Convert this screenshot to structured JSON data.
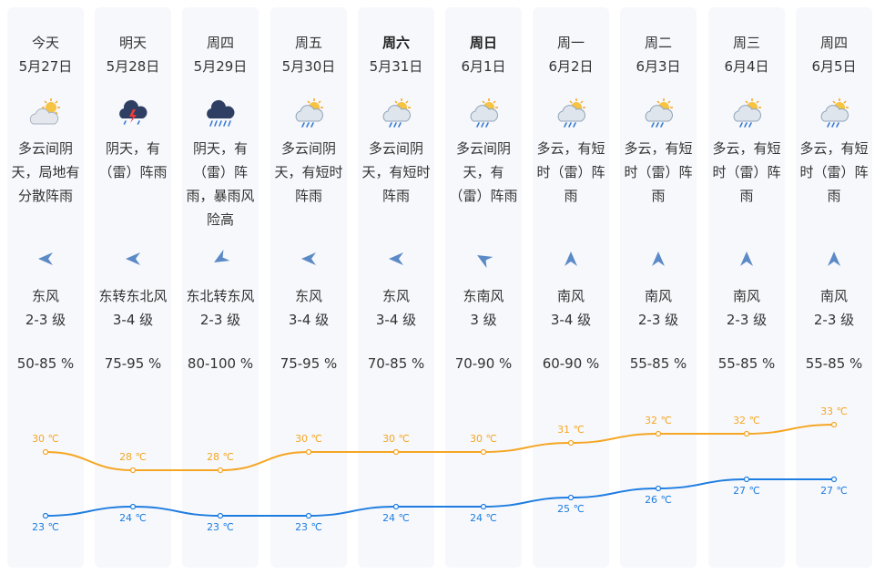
{
  "days": [
    {
      "day": "今天",
      "date": "5月27日",
      "bold": false,
      "icon": "partly-cloudy-icon",
      "desc": [
        "多云间阴",
        "天，局地有",
        "分散阵雨"
      ],
      "wind_dir": "东风",
      "wind_level": "2-3 级",
      "wind_arrow": "west",
      "humidity": "50-85 %",
      "high": "30 ℃",
      "low": "23 ℃",
      "high_val": 30,
      "low_val": 23
    },
    {
      "day": "明天",
      "date": "5月28日",
      "bold": false,
      "icon": "thunderstorm-icon",
      "desc": [
        "阴天，有",
        "（雷）阵雨"
      ],
      "wind_dir": "东转东北风",
      "wind_level": "3-4 级",
      "wind_arrow": "west",
      "humidity": "75-95 %",
      "high": "28 ℃",
      "low": "24 ℃",
      "high_val": 28,
      "low_val": 24
    },
    {
      "day": "周四",
      "date": "5月29日",
      "bold": false,
      "icon": "heavy-rain-icon",
      "desc": [
        "阴天，有",
        "（雷）阵",
        "雨，暴雨风",
        "险高"
      ],
      "wind_dir": "东北转东风",
      "wind_level": "2-3 级",
      "wind_arrow": "southwest",
      "humidity": "80-100 %",
      "high": "28 ℃",
      "low": "23 ℃",
      "high_val": 28,
      "low_val": 23
    },
    {
      "day": "周五",
      "date": "5月30日",
      "bold": false,
      "icon": "sun-cloud-rain-icon",
      "desc": [
        "多云间阴",
        "天，有短时",
        "阵雨"
      ],
      "wind_dir": "东风",
      "wind_level": "3-4 级",
      "wind_arrow": "west",
      "humidity": "75-95 %",
      "high": "30 ℃",
      "low": "23 ℃",
      "high_val": 30,
      "low_val": 23
    },
    {
      "day": "周六",
      "date": "5月31日",
      "bold": true,
      "icon": "sun-cloud-rain-icon",
      "desc": [
        "多云间阴",
        "天，有短时",
        "阵雨"
      ],
      "wind_dir": "东风",
      "wind_level": "3-4 级",
      "wind_arrow": "west",
      "humidity": "70-85 %",
      "high": "30 ℃",
      "low": "24 ℃",
      "high_val": 30,
      "low_val": 24
    },
    {
      "day": "周日",
      "date": "6月1日",
      "bold": true,
      "icon": "sun-cloud-rain-icon",
      "desc": [
        "多云间阴",
        "天，有",
        "（雷）阵雨"
      ],
      "wind_dir": "东南风",
      "wind_level": "3 级",
      "wind_arrow": "northwest",
      "humidity": "70-90 %",
      "high": "30 ℃",
      "low": "24 ℃",
      "high_val": 30,
      "low_val": 24
    },
    {
      "day": "周一",
      "date": "6月2日",
      "bold": false,
      "icon": "sun-cloud-rain-icon",
      "desc": [
        "多云，有短",
        "时（雷）阵",
        "雨"
      ],
      "wind_dir": "南风",
      "wind_level": "3-4 级",
      "wind_arrow": "north",
      "humidity": "60-90 %",
      "high": "31 ℃",
      "low": "25 ℃",
      "high_val": 31,
      "low_val": 25
    },
    {
      "day": "周二",
      "date": "6月3日",
      "bold": false,
      "icon": "sun-cloud-rain-icon",
      "desc": [
        "多云，有短",
        "时（雷）阵",
        "雨"
      ],
      "wind_dir": "南风",
      "wind_level": "2-3 级",
      "wind_arrow": "north",
      "humidity": "55-85 %",
      "high": "32 ℃",
      "low": "26 ℃",
      "high_val": 32,
      "low_val": 26
    },
    {
      "day": "周三",
      "date": "6月4日",
      "bold": false,
      "icon": "sun-cloud-rain-icon",
      "desc": [
        "多云，有短",
        "时（雷）阵",
        "雨"
      ],
      "wind_dir": "南风",
      "wind_level": "2-3 级",
      "wind_arrow": "north",
      "humidity": "55-85 %",
      "high": "32 ℃",
      "low": "27 ℃",
      "high_val": 32,
      "low_val": 27
    },
    {
      "day": "周四",
      "date": "6月5日",
      "bold": false,
      "icon": "sun-cloud-rain-icon",
      "desc": [
        "多云，有短",
        "时（雷）阵",
        "雨"
      ],
      "wind_dir": "南风",
      "wind_level": "2-3 级",
      "wind_arrow": "north",
      "humidity": "55-85 %",
      "high": "33 ℃",
      "low": "27 ℃",
      "high_val": 33,
      "low_val": 27
    }
  ],
  "colors": {
    "high_line": "#f5a623",
    "low_line": "#1e7de0",
    "arrow": "#5b8ac7"
  }
}
